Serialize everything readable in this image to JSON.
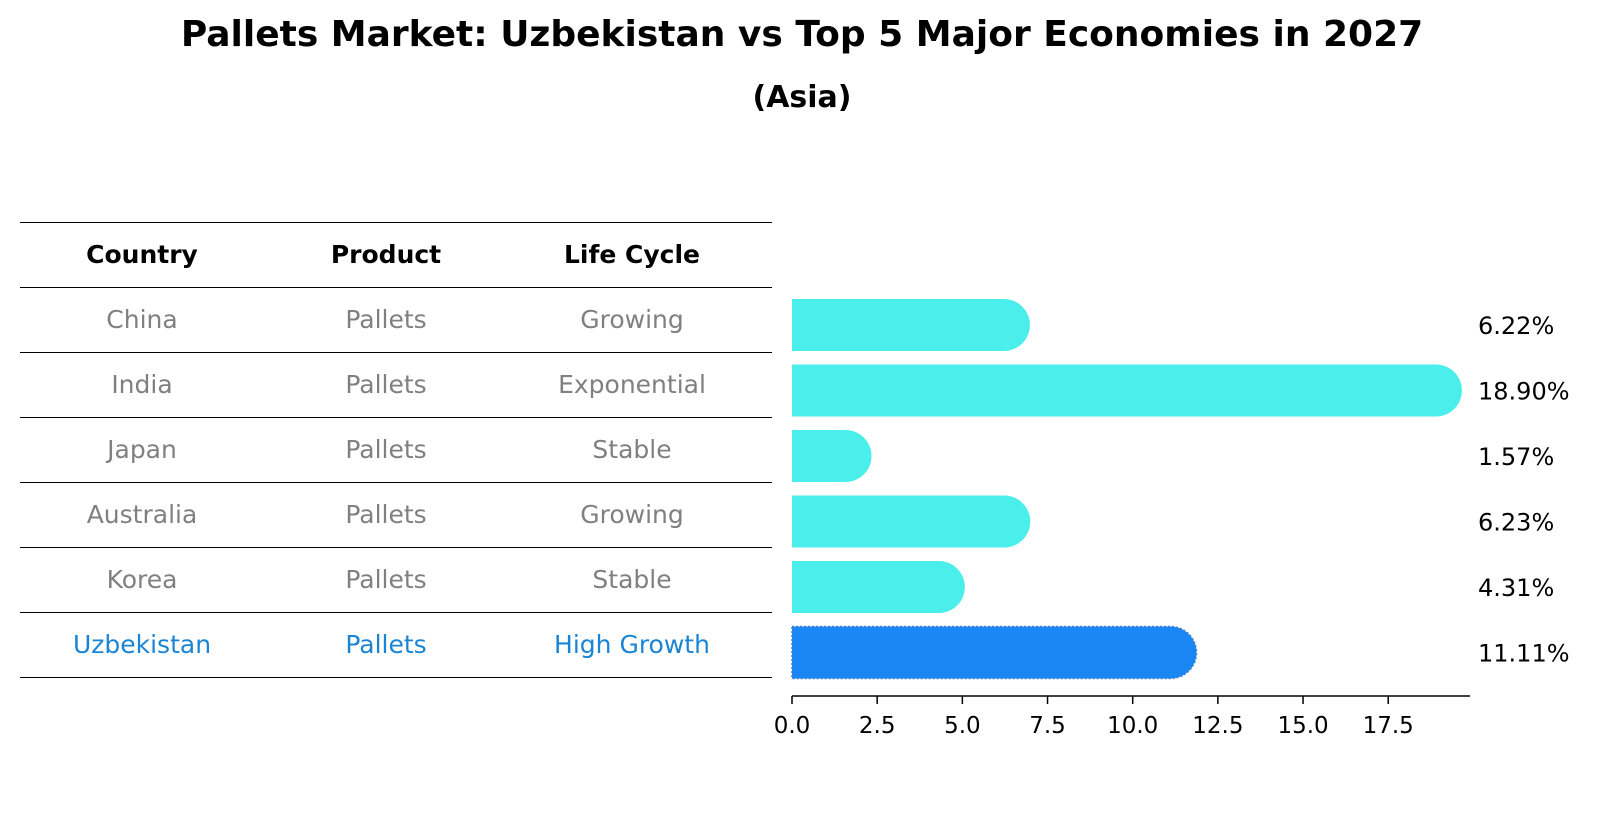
{
  "title": "Pallets Market: Uzbekistan vs Top 5 Major Economies in 2027",
  "subtitle": "(Asia)",
  "table": {
    "headers": [
      "Country",
      "Product",
      "Life Cycle"
    ],
    "rows": [
      [
        "China",
        "Pallets",
        "Growing"
      ],
      [
        "India",
        "Pallets",
        "Exponential"
      ],
      [
        "Japan",
        "Pallets",
        "Stable"
      ],
      [
        "Australia",
        "Pallets",
        "Growing"
      ],
      [
        "Korea",
        "Pallets",
        "Stable"
      ],
      [
        "Uzbekistan",
        "Pallets",
        "High Growth"
      ]
    ]
  },
  "colors": {
    "normal_text": "#808080",
    "highlight_text": "#1a85d6",
    "bar": "#4aeeea",
    "highlight_bar": "#1a86f4"
  },
  "chart_data": {
    "type": "bar",
    "orientation": "horizontal",
    "categories": [
      "China",
      "India",
      "Japan",
      "Australia",
      "Korea",
      "Uzbekistan"
    ],
    "values": [
      6.22,
      18.9,
      1.57,
      6.23,
      4.31,
      11.11
    ],
    "value_labels": [
      "6.22%",
      "18.90%",
      "1.57%",
      "6.23%",
      "4.31%",
      "11.11%"
    ],
    "highlight": "Uzbekistan",
    "xlim": [
      0,
      19.9
    ],
    "xticks": [
      0.0,
      2.5,
      5.0,
      7.5,
      10.0,
      12.5,
      15.0,
      17.5
    ],
    "xtick_labels": [
      "0.0",
      "2.5",
      "5.0",
      "7.5",
      "10.0",
      "12.5",
      "15.0",
      "17.5"
    ],
    "grid": false,
    "legend": false
  }
}
